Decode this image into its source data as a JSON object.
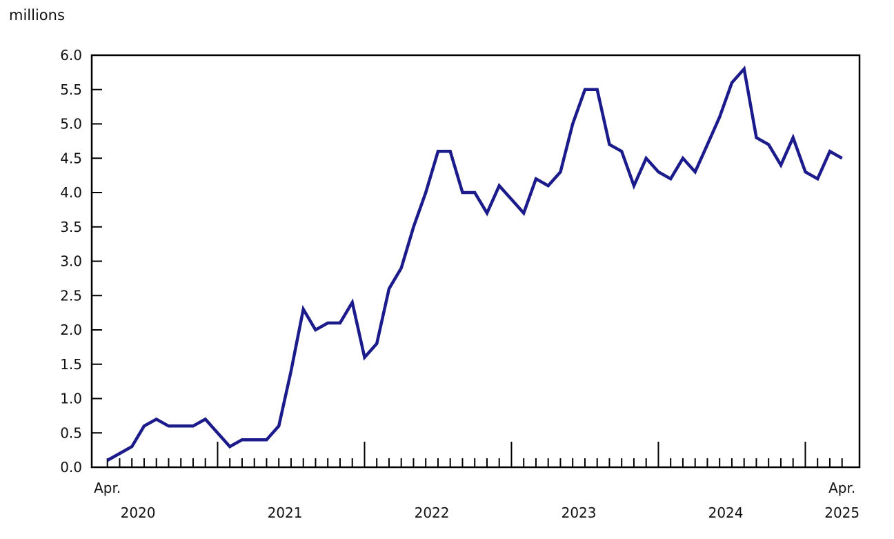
{
  "chart_data": {
    "type": "line",
    "title": "",
    "unit_label": "millions",
    "ylabel": "millions",
    "xlabel": "",
    "ylim": [
      0,
      6
    ],
    "y_tick_step": 0.5,
    "grid": false,
    "legend": "none",
    "x": [
      "Apr 2020",
      "May 2020",
      "Jun 2020",
      "Jul 2020",
      "Aug 2020",
      "Sep 2020",
      "Oct 2020",
      "Nov 2020",
      "Dec 2020",
      "Jan 2021",
      "Feb 2021",
      "Mar 2021",
      "Apr 2021",
      "May 2021",
      "Jun 2021",
      "Jul 2021",
      "Aug 2021",
      "Sep 2021",
      "Oct 2021",
      "Nov 2021",
      "Dec 2021",
      "Jan 2022",
      "Feb 2022",
      "Mar 2022",
      "Apr 2022",
      "May 2022",
      "Jun 2022",
      "Jul 2022",
      "Aug 2022",
      "Sep 2022",
      "Oct 2022",
      "Nov 2022",
      "Dec 2022",
      "Jan 2023",
      "Feb 2023",
      "Mar 2023",
      "Apr 2023",
      "May 2023",
      "Jun 2023",
      "Jul 2023",
      "Aug 2023",
      "Sep 2023",
      "Oct 2023",
      "Nov 2023",
      "Dec 2023",
      "Jan 2024",
      "Feb 2024",
      "Mar 2024",
      "Apr 2024",
      "May 2024",
      "Jun 2024",
      "Jul 2024",
      "Aug 2024",
      "Sep 2024",
      "Oct 2024",
      "Nov 2024",
      "Dec 2024",
      "Jan 2025",
      "Feb 2025",
      "Mar 2025",
      "Apr 2025"
    ],
    "values": [
      0.1,
      0.2,
      0.3,
      0.6,
      0.7,
      0.6,
      0.6,
      0.6,
      0.7,
      0.5,
      0.3,
      0.4,
      0.4,
      0.4,
      0.6,
      1.4,
      2.3,
      2.0,
      2.1,
      2.1,
      2.4,
      1.6,
      1.8,
      2.6,
      2.9,
      3.5,
      4.0,
      4.6,
      4.6,
      4.0,
      4.0,
      3.7,
      4.1,
      3.9,
      3.7,
      4.2,
      4.1,
      4.3,
      5.0,
      5.5,
      5.5,
      4.7,
      4.6,
      4.1,
      4.5,
      4.3,
      4.2,
      4.5,
      4.3,
      4.7,
      5.1,
      5.6,
      5.8,
      4.8,
      4.7,
      4.4,
      4.8,
      4.3,
      4.2,
      4.6,
      4.5
    ],
    "x_end_labels": [
      {
        "label": "Apr.",
        "pos": 0
      },
      {
        "label": "Apr.",
        "pos": 60
      }
    ],
    "year_labels": [
      {
        "label": "2020",
        "pos": 2.5
      },
      {
        "label": "2021",
        "pos": 14.5
      },
      {
        "label": "2022",
        "pos": 26.5
      },
      {
        "label": "2023",
        "pos": 38.5
      },
      {
        "label": "2024",
        "pos": 50.5
      },
      {
        "label": "2025",
        "pos": 60
      }
    ],
    "y_tick_labels": [
      "0.0",
      "0.5",
      "1.0",
      "1.5",
      "2.0",
      "2.5",
      "3.0",
      "3.5",
      "4.0",
      "4.5",
      "5.0",
      "5.5",
      "6.0"
    ],
    "colors": {
      "line": "#1b1b8c",
      "axis": "#000000",
      "text": "#111111",
      "background": "#ffffff"
    }
  }
}
